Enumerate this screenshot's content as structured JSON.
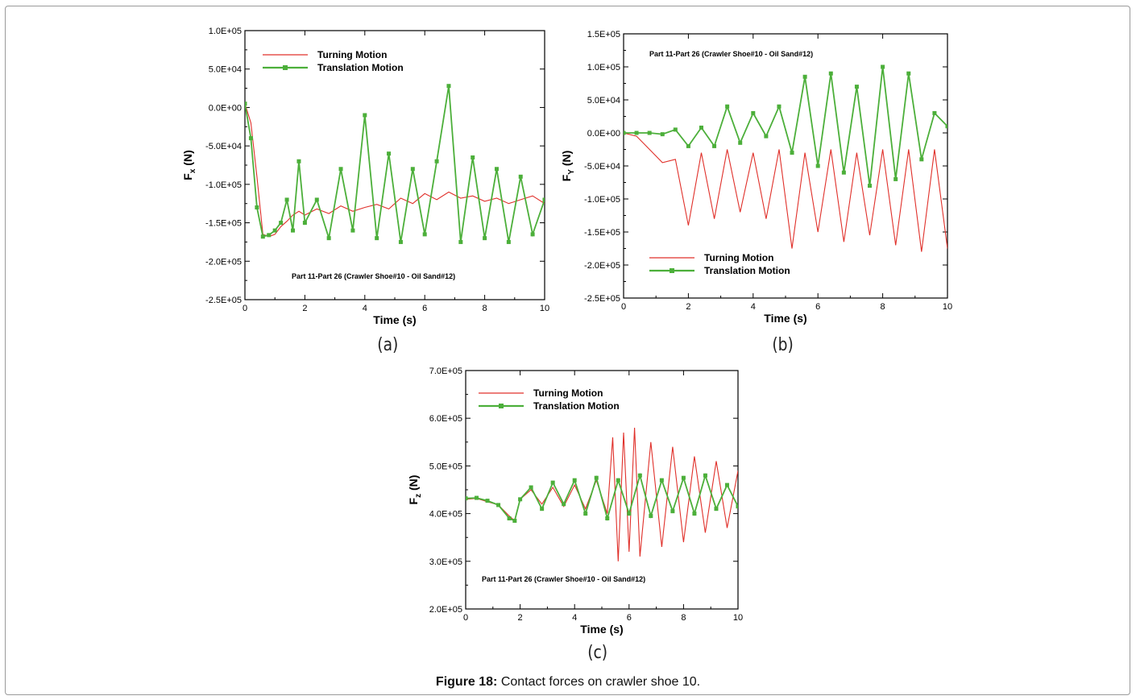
{
  "figure": {
    "label": "Figure 18:",
    "text": " Contact forces on crawler shoe 10."
  },
  "panels": [
    {
      "id": "a",
      "caption": "(a)",
      "ylabel_main": "F",
      "ylabel_sub": "x",
      "ylabel_unit": " (N)"
    },
    {
      "id": "b",
      "caption": "(b)",
      "ylabel_main": "F",
      "ylabel_sub": "Y",
      "ylabel_unit": " (N)"
    },
    {
      "id": "c",
      "caption": "(c)",
      "ylabel_main": "F",
      "ylabel_sub": "z",
      "ylabel_unit": " (N)"
    }
  ],
  "colors": {
    "turning": "#e0302a",
    "translation": "#4caf3a",
    "axis": "#000000"
  },
  "chart_data": [
    {
      "type": "line",
      "title": "",
      "xlabel": "Time (s)",
      "ylabel": "Fx (N)",
      "annotation": "Part 11-Part 26 (Crawler Shoe#10 - Oil Sand#12)",
      "xlim": [
        0,
        10
      ],
      "ylim": [
        -250000,
        100000
      ],
      "xticks": [
        "0",
        "2",
        "4",
        "6",
        "8",
        "10"
      ],
      "yticks": [
        "1.0E+05",
        "5.0E+04",
        "0.0E+00",
        "-5.0E+04",
        "-1.0E+05",
        "-1.5E+05",
        "-2.0E+05",
        "-2.5E+05"
      ],
      "legend": "top-left",
      "series": [
        {
          "name": "Turning Motion",
          "x": [
            0,
            0.2,
            0.4,
            0.6,
            0.8,
            1.0,
            1.2,
            1.4,
            1.6,
            1.8,
            2.0,
            2.4,
            2.8,
            3.2,
            3.6,
            4.0,
            4.4,
            4.8,
            5.2,
            5.6,
            6.0,
            6.4,
            6.8,
            7.2,
            7.6,
            8.0,
            8.4,
            8.8,
            9.2,
            9.6,
            10.0
          ],
          "y": [
            5000,
            -20000,
            -90000,
            -165000,
            -168000,
            -165000,
            -155000,
            -148000,
            -140000,
            -135000,
            -140000,
            -132000,
            -138000,
            -128000,
            -135000,
            -130000,
            -126000,
            -132000,
            -118000,
            -125000,
            -112000,
            -120000,
            -110000,
            -118000,
            -115000,
            -122000,
            -118000,
            -125000,
            -120000,
            -115000,
            -125000
          ]
        },
        {
          "name": "Translation Motion",
          "x": [
            0,
            0.2,
            0.4,
            0.6,
            0.8,
            1.0,
            1.2,
            1.4,
            1.6,
            1.8,
            2.0,
            2.4,
            2.8,
            3.2,
            3.6,
            4.0,
            4.4,
            4.8,
            5.2,
            5.6,
            6.0,
            6.4,
            6.8,
            7.2,
            7.6,
            8.0,
            8.4,
            8.8,
            9.2,
            9.6,
            10.0
          ],
          "y": [
            5000,
            -40000,
            -130000,
            -168000,
            -166000,
            -160000,
            -150000,
            -120000,
            -160000,
            -70000,
            -150000,
            -120000,
            -170000,
            -80000,
            -160000,
            -10000,
            -170000,
            -60000,
            -175000,
            -80000,
            -165000,
            -70000,
            28000,
            -175000,
            -65000,
            -170000,
            -80000,
            -175000,
            -90000,
            -165000,
            -120000
          ]
        }
      ]
    },
    {
      "type": "line",
      "title": "",
      "xlabel": "Time (s)",
      "ylabel": "FY (N)",
      "annotation": "Part 11-Part 26 (Crawler Shoe#10 - Oil Sand#12)",
      "xlim": [
        0,
        10
      ],
      "ylim": [
        -250000,
        150000
      ],
      "xticks": [
        "0",
        "2",
        "4",
        "6",
        "8",
        "10"
      ],
      "yticks": [
        "1.5E+05",
        "1.0E+05",
        "5.0E+04",
        "0.0E+00",
        "-5.0E+04",
        "-1.0E+05",
        "-1.5E+05",
        "-2.0E+05",
        "-2.5E+05"
      ],
      "legend": "bottom-left",
      "series": [
        {
          "name": "Turning Motion",
          "x": [
            0,
            0.4,
            0.8,
            1.2,
            1.6,
            2.0,
            2.4,
            2.8,
            3.2,
            3.6,
            4.0,
            4.4,
            4.8,
            5.2,
            5.6,
            6.0,
            6.4,
            6.8,
            7.2,
            7.6,
            8.0,
            8.4,
            8.8,
            9.2,
            9.6,
            10.0
          ],
          "y": [
            0,
            -5000,
            -25000,
            -45000,
            -40000,
            -140000,
            -30000,
            -130000,
            -25000,
            -120000,
            -30000,
            -130000,
            -25000,
            -175000,
            -30000,
            -150000,
            -25000,
            -165000,
            -30000,
            -155000,
            -25000,
            -170000,
            -25000,
            -180000,
            -25000,
            -175000
          ]
        },
        {
          "name": "Translation Motion",
          "x": [
            0,
            0.4,
            0.8,
            1.2,
            1.6,
            2.0,
            2.4,
            2.8,
            3.2,
            3.6,
            4.0,
            4.4,
            4.8,
            5.2,
            5.6,
            6.0,
            6.4,
            6.8,
            7.2,
            7.6,
            8.0,
            8.4,
            8.8,
            9.2,
            9.6,
            10.0
          ],
          "y": [
            0,
            0,
            0,
            -2000,
            5000,
            -20000,
            8000,
            -20000,
            40000,
            -15000,
            30000,
            -5000,
            40000,
            -30000,
            85000,
            -50000,
            90000,
            -60000,
            70000,
            -80000,
            100000,
            -70000,
            90000,
            -40000,
            30000,
            10000
          ]
        }
      ]
    },
    {
      "type": "line",
      "title": "",
      "xlabel": "Time (s)",
      "ylabel": "Fz (N)",
      "annotation": "Part 11-Part 26 (Crawler Shoe#10 - Oil Sand#12)",
      "xlim": [
        0,
        10
      ],
      "ylim": [
        200000,
        700000
      ],
      "xticks": [
        "0",
        "2",
        "4",
        "6",
        "8",
        "10"
      ],
      "yticks": [
        "7.0E+05",
        "6.0E+05",
        "5.0E+05",
        "4.0E+05",
        "3.0E+05",
        "2.0E+05"
      ],
      "legend": "top-left",
      "series": [
        {
          "name": "Turning Motion",
          "x": [
            0,
            0.4,
            0.8,
            1.2,
            1.6,
            1.8,
            2.0,
            2.4,
            2.8,
            3.2,
            3.6,
            4.0,
            4.4,
            4.8,
            5.2,
            5.4,
            5.6,
            5.8,
            6.0,
            6.2,
            6.4,
            6.8,
            7.2,
            7.6,
            8.0,
            8.4,
            8.8,
            9.2,
            9.6,
            10.0
          ],
          "y": [
            430000,
            432000,
            425000,
            418000,
            395000,
            385000,
            430000,
            450000,
            420000,
            455000,
            415000,
            460000,
            410000,
            470000,
            400000,
            560000,
            300000,
            570000,
            320000,
            580000,
            310000,
            550000,
            330000,
            540000,
            340000,
            520000,
            360000,
            510000,
            370000,
            490000
          ]
        },
        {
          "name": "Translation Motion",
          "x": [
            0,
            0.4,
            0.8,
            1.2,
            1.6,
            1.8,
            2.0,
            2.4,
            2.8,
            3.2,
            3.6,
            4.0,
            4.4,
            4.8,
            5.2,
            5.6,
            6.0,
            6.4,
            6.8,
            7.2,
            7.6,
            8.0,
            8.4,
            8.8,
            9.2,
            9.6,
            10.0
          ],
          "y": [
            432000,
            433000,
            427000,
            418000,
            390000,
            385000,
            430000,
            455000,
            410000,
            465000,
            420000,
            470000,
            400000,
            475000,
            390000,
            470000,
            400000,
            480000,
            395000,
            470000,
            405000,
            475000,
            400000,
            480000,
            410000,
            460000,
            415000
          ]
        }
      ]
    }
  ]
}
